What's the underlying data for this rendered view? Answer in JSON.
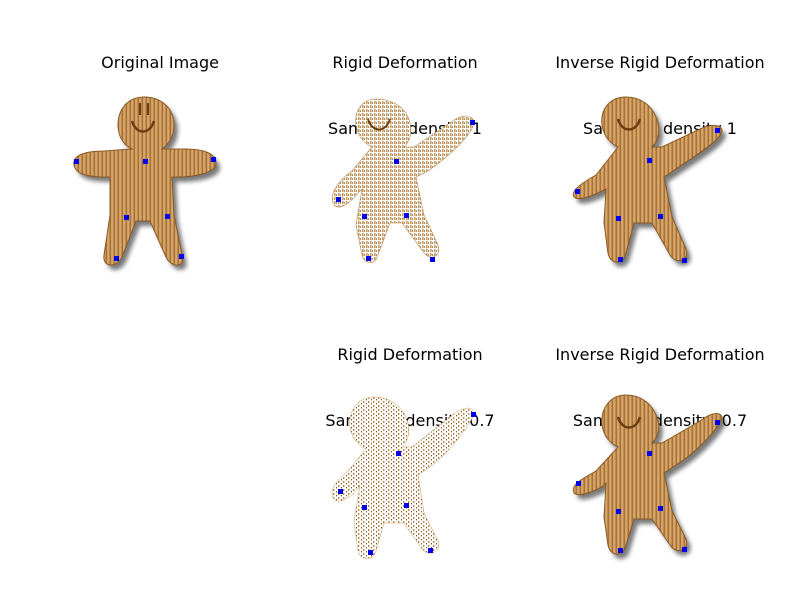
{
  "panels": [
    {
      "id": "original",
      "title_line1": "Original Image",
      "title_line2": ""
    },
    {
      "id": "rigid-1",
      "title_line1": "Rigid Deformation",
      "title_line2": "Sampling density 1"
    },
    {
      "id": "inverse-1",
      "title_line1": "Inverse Rigid Deformation",
      "title_line2": "Sampling density 1"
    },
    {
      "id": "rigid-07",
      "title_line1": "Rigid Deformation",
      "title_line2": "Sampling density 0.7"
    },
    {
      "id": "inverse-07",
      "title_line1": "Inverse Rigid Deformation",
      "title_line2": "Sampling density  0.7"
    }
  ],
  "colors": {
    "cookie_light": "#e0b277",
    "cookie_mid": "#c8914f",
    "cookie_dark": "#8a5a25",
    "control_point": "#0000ee",
    "shadow": "#3a3a3a"
  }
}
